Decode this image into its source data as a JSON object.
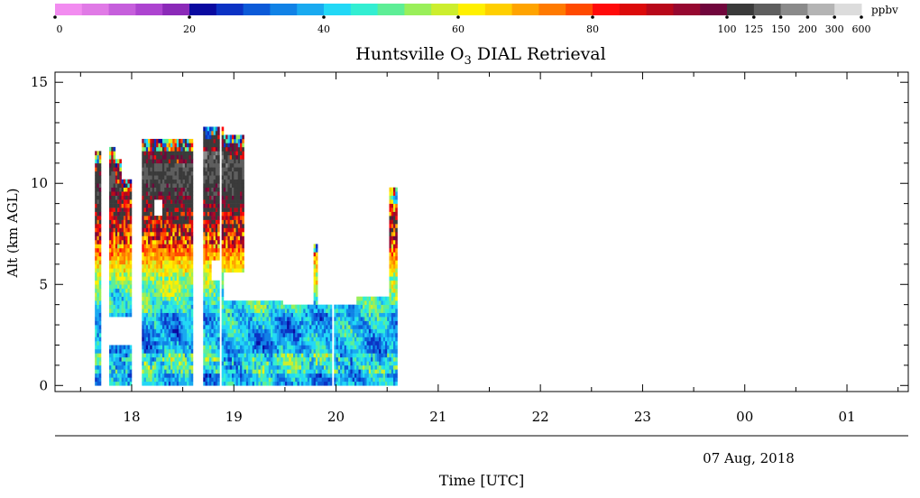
{
  "chart_data": {
    "type": "heatmap",
    "title_prefix": "Huntsville O",
    "title_subscript": "3",
    "title_suffix": " DIAL Retrieval",
    "ylabel": "Alt (km AGL)",
    "xlabel": "Time [UTC]",
    "date_label": "07 Aug, 2018",
    "grid": false,
    "colorbar": {
      "unit": "ppbv",
      "colors": [
        "#f28cf0",
        "#e07ae6",
        "#c65fdc",
        "#ad44d0",
        "#8b2ab8",
        "#0a0aa0",
        "#0b32c4",
        "#0c5ad8",
        "#1182e6",
        "#19aaf0",
        "#22d8f6",
        "#33eed2",
        "#5eee96",
        "#9aef5a",
        "#ccee2e",
        "#fff000",
        "#ffcf00",
        "#ffa400",
        "#ff7a00",
        "#ff4a00",
        "#ff0a0a",
        "#dc0a0a",
        "#b8081a",
        "#960830",
        "#70063c",
        "#3a3a3a",
        "#5e5e5e",
        "#8a8a8a",
        "#b4b4b4",
        "#dcdcdc"
      ],
      "tick_labels": [
        {
          "label": "0",
          "index": 0
        },
        {
          "label": "20",
          "index": 5
        },
        {
          "label": "40",
          "index": 10
        },
        {
          "label": "60",
          "index": 15
        },
        {
          "label": "80",
          "index": 20
        },
        {
          "label": "100",
          "index": 25
        },
        {
          "label": "125",
          "index": 26
        },
        {
          "label": "150",
          "index": 27
        },
        {
          "label": "200",
          "index": 28
        },
        {
          "label": "300",
          "index": 29
        },
        {
          "label": "600",
          "index": 30
        }
      ]
    },
    "x_ticks": [
      "18",
      "19",
      "20",
      "21",
      "22",
      "23",
      "00",
      "01"
    ],
    "x_tick_hours": [
      18,
      19,
      20,
      21,
      22,
      23,
      24,
      25
    ],
    "xlim": [
      17.25,
      25.6
    ],
    "y_ticks": [
      0,
      5,
      10,
      15
    ],
    "ylim": [
      -0.3,
      15.5
    ],
    "cell": {
      "time_step_h": 0.02,
      "alt_step_km": 0.2
    },
    "data_columns": [
      {
        "start": 17.64,
        "end": 17.7,
        "top": 11.4
      },
      {
        "start": 17.78,
        "end": 17.84,
        "top": 11.7
      },
      {
        "start": 17.84,
        "end": 17.9,
        "top": 11.1
      },
      {
        "start": 17.9,
        "end": 18.0,
        "top": 10.0
      },
      {
        "start": 18.1,
        "end": 18.6,
        "top": 12.0
      },
      {
        "start": 18.7,
        "end": 18.9,
        "top": 12.6
      },
      {
        "start": 18.9,
        "end": 19.1,
        "top": 12.3
      },
      {
        "start": 19.1,
        "end": 19.16,
        "top": 11.0
      },
      {
        "start": 19.16,
        "end": 20.6,
        "top": 7.0
      },
      {
        "start": 20.52,
        "end": 20.6,
        "top": 9.6
      }
    ],
    "gaps": [
      {
        "from": 17.7,
        "to": 17.78,
        "alt_from": 0,
        "alt_to": 20
      },
      {
        "from": 18.0,
        "to": 18.1,
        "alt_from": 0,
        "alt_to": 20
      },
      {
        "from": 18.6,
        "to": 18.7,
        "alt_from": 0,
        "alt_to": 20
      },
      {
        "from": 18.85,
        "to": 18.87,
        "alt_from": 0,
        "alt_to": 20
      },
      {
        "from": 19.95,
        "to": 19.97,
        "alt_from": 0,
        "alt_to": 20
      },
      {
        "from": 17.78,
        "to": 18.0,
        "alt_from": 2.0,
        "alt_to": 3.5
      },
      {
        "from": 18.22,
        "to": 18.3,
        "alt_from": 8.4,
        "alt_to": 9.2
      },
      {
        "from": 18.78,
        "to": 18.88,
        "alt_from": 5.3,
        "alt_to": 6.2
      },
      {
        "from": 18.9,
        "to": 19.1,
        "alt_from": 4.3,
        "alt_to": 5.6
      },
      {
        "from": 19.1,
        "to": 19.48,
        "alt_from": 4.3,
        "alt_to": 20
      },
      {
        "from": 19.48,
        "to": 19.78,
        "alt_from": 4.0,
        "alt_to": 20
      },
      {
        "from": 19.82,
        "to": 20.2,
        "alt_from": 4.0,
        "alt_to": 20
      },
      {
        "from": 20.2,
        "to": 20.52,
        "alt_from": 4.4,
        "alt_to": 20
      }
    ]
  }
}
